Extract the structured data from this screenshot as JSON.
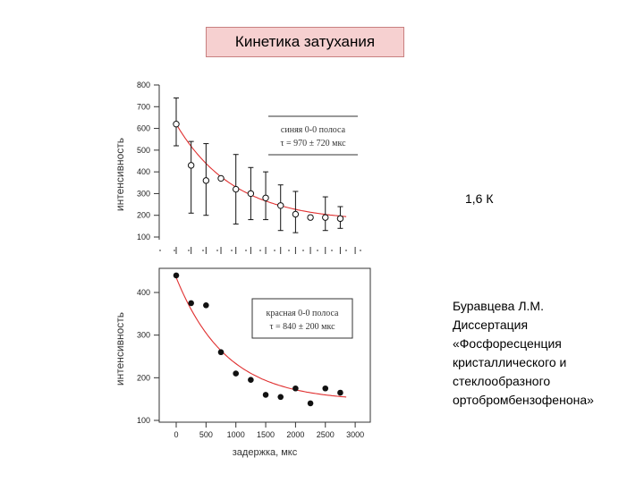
{
  "slide": {
    "title": "Кинетика затухания",
    "temperature": "1,6 К",
    "author_note": "Буравцева Л.М.\nДиссертация\n«Фосфоресценция\nкристаллического и\nстеклообразного\nортобромбензофенона»"
  },
  "colors": {
    "fit_line": "#e03030",
    "title_fill": "#f6d0d0",
    "title_border": "#c88080",
    "marker": "#111111"
  },
  "chart_data": [
    {
      "type": "scatter",
      "ylabel": "интенсивность",
      "xlabel": "",
      "xlim": [
        -400,
        3300
      ],
      "ylim": [
        100,
        800
      ],
      "yticks": [
        100,
        200,
        300,
        400,
        500,
        600,
        700,
        800
      ],
      "ytick_labels": [
        "100",
        "200",
        "300",
        "400",
        "500",
        "600",
        "700",
        "800"
      ],
      "legend": {
        "line1": "синяя 0-0 полоса",
        "line2": "τ = 970 ± 720 мкс",
        "placement": "top-right"
      },
      "marker": "open-circle",
      "series": [
        {
          "x": [
            0,
            250,
            500,
            750,
            1000,
            1250,
            1500,
            1750,
            2000,
            2250,
            2500,
            2750
          ],
          "y": [
            620,
            430,
            360,
            370,
            320,
            300,
            280,
            245,
            205,
            190,
            190,
            185
          ],
          "err_low": [
            520,
            210,
            200,
            null,
            160,
            180,
            180,
            130,
            120,
            null,
            130,
            140
          ],
          "err_high": [
            740,
            540,
            530,
            null,
            480,
            420,
            400,
            340,
            310,
            null,
            285,
            240
          ]
        }
      ],
      "fit": {
        "tau": 970,
        "amplitude": 450,
        "offset": 170
      }
    },
    {
      "type": "scatter",
      "ylabel": "интенсивность",
      "xlabel": "задержка, мкс",
      "xlim": [
        -400,
        3300
      ],
      "ylim": [
        90,
        470
      ],
      "yticks": [
        100,
        200,
        300,
        400
      ],
      "ytick_labels": [
        "100",
        "200",
        "300",
        "400"
      ],
      "xticks": [
        0,
        500,
        1000,
        1500,
        2000,
        2500,
        3000
      ],
      "xtick_labels": [
        "0",
        "500",
        "1000",
        "1500",
        "2000",
        "2500",
        "3000"
      ],
      "legend": {
        "line1": "красная 0-0 полоса",
        "line2": "τ = 840 ± 200 мкс",
        "placement": "top-right"
      },
      "marker": "filled-circle",
      "series": [
        {
          "x": [
            0,
            250,
            500,
            750,
            1000,
            1250,
            1500,
            1750,
            2000,
            2250,
            2500,
            2750
          ],
          "y": [
            440,
            375,
            370,
            260,
            210,
            195,
            160,
            155,
            175,
            140,
            175,
            165
          ]
        }
      ],
      "fit": {
        "tau": 840,
        "amplitude": 290,
        "offset": 145
      }
    }
  ]
}
